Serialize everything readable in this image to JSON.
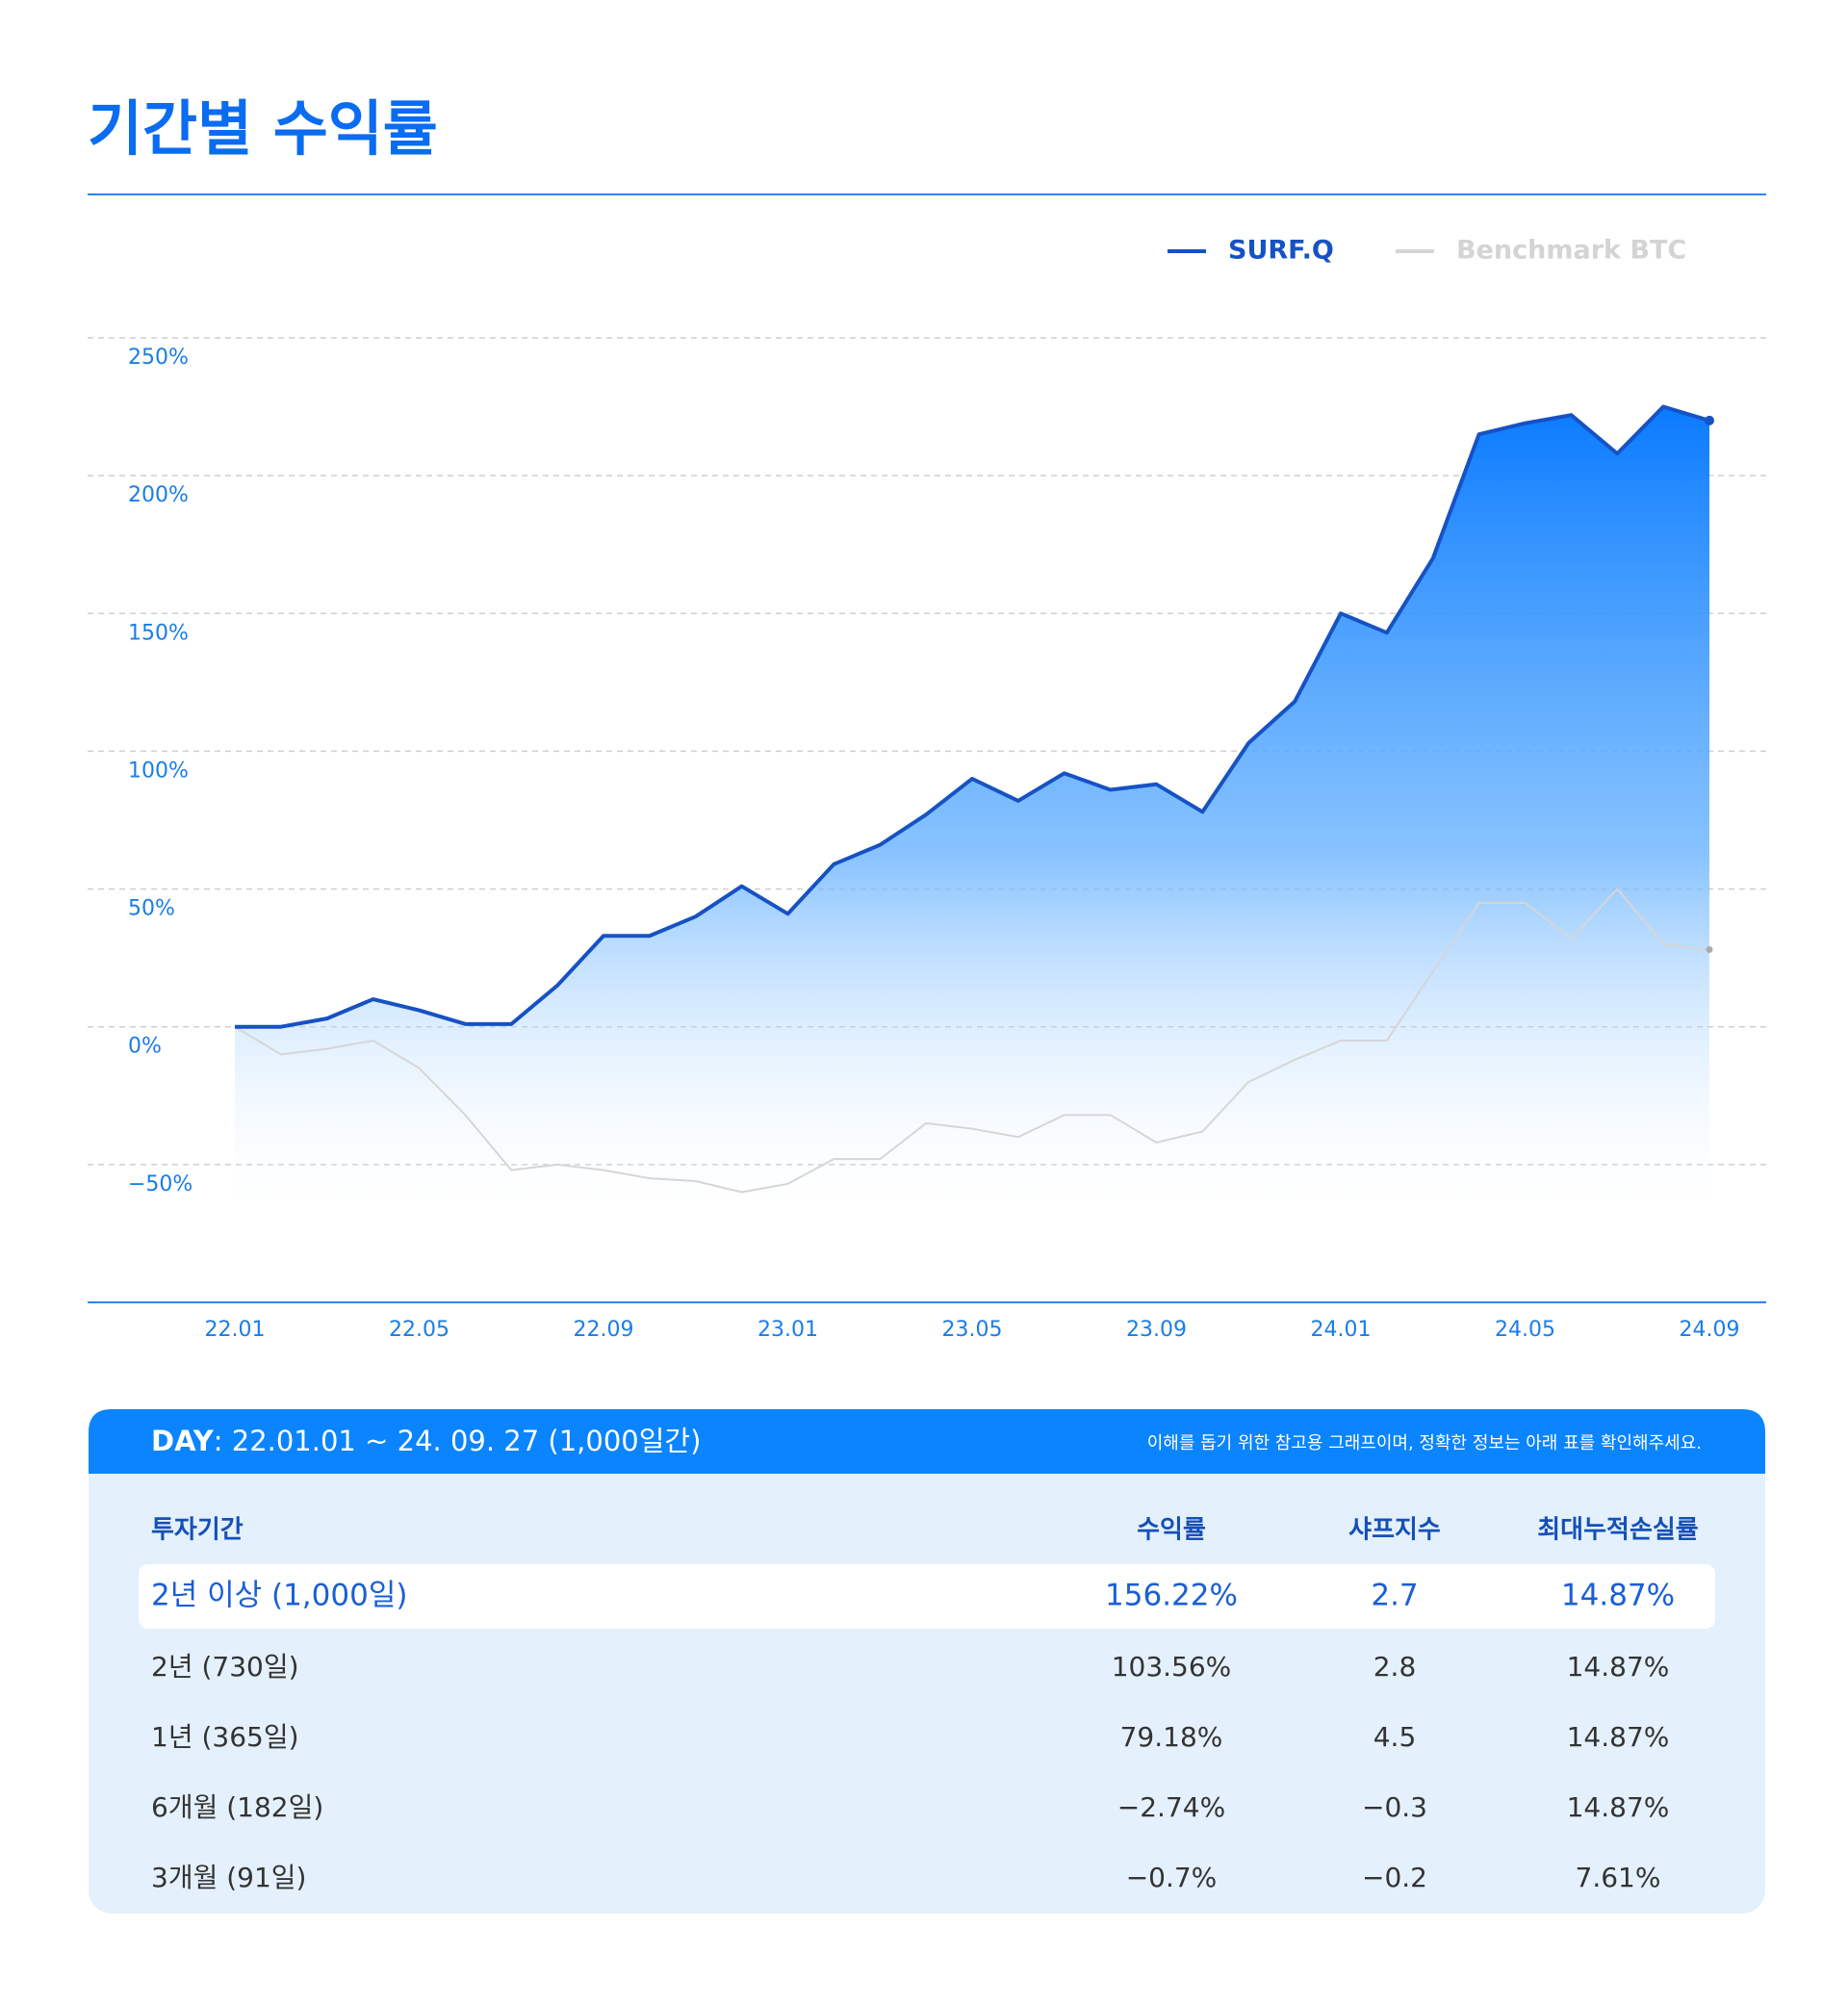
{
  "chart_data": {
    "type": "line",
    "title": "기간별 수익률",
    "categories": [
      "22.01",
      null,
      null,
      null,
      "22.05",
      null,
      null,
      null,
      "22.09",
      null,
      null,
      null,
      "23.01",
      null,
      null,
      null,
      "23.05",
      null,
      null,
      null,
      "23.09",
      null,
      null,
      null,
      "24.01",
      null,
      null,
      null,
      "24.05",
      null,
      null,
      null,
      "24.09"
    ],
    "series": [
      {
        "name": "SURF.Q",
        "color": "#1652c4",
        "values": [
          0,
          0,
          3,
          10,
          6,
          1,
          1,
          15,
          33,
          33,
          40,
          51,
          41,
          59,
          66,
          77,
          90,
          82,
          92,
          86,
          88,
          78,
          103,
          118,
          150,
          143,
          170,
          215,
          219,
          222,
          208,
          225,
          220
        ]
      },
      {
        "name": "Benchmark BTC",
        "color": "#d6d6d6",
        "values": [
          0,
          -10,
          -8,
          -5,
          -15,
          -32,
          -52,
          -50,
          -52,
          -55,
          -56,
          -60,
          -57,
          -48,
          -48,
          -35,
          -37,
          -40,
          -32,
          -32,
          -42,
          -38,
          -20,
          -12,
          -5,
          -5,
          20,
          45,
          45,
          32,
          50,
          30,
          28
        ]
      }
    ],
    "ylim": [
      -100,
      250
    ],
    "yticks": [
      {
        "value": -50,
        "label": "−50%"
      },
      {
        "value": 0,
        "label": "0%"
      },
      {
        "value": 50,
        "label": "50%"
      },
      {
        "value": 100,
        "label": "100%"
      },
      {
        "value": 150,
        "label": "150%"
      },
      {
        "value": 200,
        "label": "200%"
      },
      {
        "value": 250,
        "label": "250%"
      }
    ],
    "grid": true,
    "legend": "top-right"
  },
  "table": {
    "period_label": "DAY",
    "period": ": 22.01.01 ~ 24. 09. 27 (1,000일간)",
    "note": "이해를 돕기 위한 참고용 그래프이며, 정확한 정보는 아래 표를 확인해주세요.",
    "columns": [
      "투자기간",
      "수익률",
      "샤프지수",
      "최대누적손실률"
    ],
    "rows": [
      [
        "2년 이상 (1,000일)",
        "156.22%",
        "2.7",
        "14.87%"
      ],
      [
        "2년 (730일)",
        "103.56%",
        "2.8",
        "14.87%"
      ],
      [
        "1년 (365일)",
        "79.18%",
        "4.5",
        "14.87%"
      ],
      [
        "6개월 (182일)",
        "−2.74%",
        "−0.3",
        "14.87%"
      ],
      [
        "3개월 (91일)",
        "−0.7%",
        "−0.2",
        "7.61%"
      ]
    ]
  }
}
